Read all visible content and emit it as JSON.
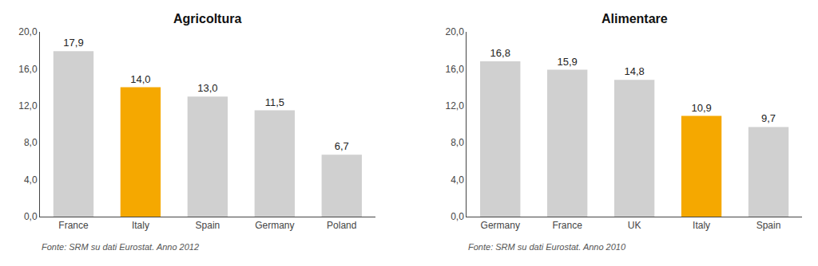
{
  "chart_data": [
    {
      "type": "bar",
      "title": "Agricoltura",
      "categories": [
        "France",
        "Italy",
        "Spain",
        "Germany",
        "Poland"
      ],
      "values": [
        17.9,
        14.0,
        13.0,
        11.5,
        6.7
      ],
      "value_labels": [
        "17,9",
        "14,0",
        "13,0",
        "11,5",
        "6,7"
      ],
      "colors": [
        "#d0d0d0",
        "#f5a800",
        "#d0d0d0",
        "#d0d0d0",
        "#d0d0d0"
      ],
      "data_labels": true,
      "ylim": [
        0,
        20
      ],
      "yticks": [
        {
          "value": 0,
          "label": "0,0"
        },
        {
          "value": 4,
          "label": "4,0"
        },
        {
          "value": 8,
          "label": "8,0"
        },
        {
          "value": 12,
          "label": "12,0"
        },
        {
          "value": 16,
          "label": "16,0"
        },
        {
          "value": 20,
          "label": "20,0"
        }
      ],
      "grid": false,
      "annotations": [
        "Fonte: SRM su dati Eurostat. Anno 2012"
      ]
    },
    {
      "type": "bar",
      "title": "Alimentare",
      "categories": [
        "Germany",
        "France",
        "UK",
        "Italy",
        "Spain"
      ],
      "values": [
        16.8,
        15.9,
        14.8,
        10.9,
        9.7
      ],
      "value_labels": [
        "16,8",
        "15,9",
        "14,8",
        "10,9",
        "9,7"
      ],
      "colors": [
        "#d0d0d0",
        "#d0d0d0",
        "#d0d0d0",
        "#f5a800",
        "#d0d0d0"
      ],
      "data_labels": true,
      "ylim": [
        0,
        20
      ],
      "yticks": [
        {
          "value": 0,
          "label": "0,0"
        },
        {
          "value": 4,
          "label": "4,0"
        },
        {
          "value": 8,
          "label": "8,0"
        },
        {
          "value": 12,
          "label": "12,0"
        },
        {
          "value": 16,
          "label": "16,0"
        },
        {
          "value": 20,
          "label": "20,0"
        }
      ],
      "grid": false,
      "annotations": [
        "Fonte: SRM su dati Eurostat. Anno 2010"
      ]
    }
  ]
}
